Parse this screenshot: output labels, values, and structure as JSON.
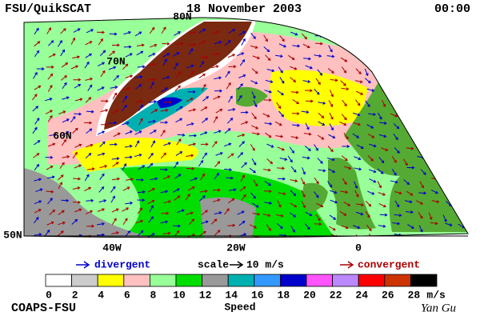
{
  "header": {
    "title": "FSU/QuikSCAT",
    "date": "18 November 2003",
    "time": "00:00"
  },
  "map": {
    "lat_labels": [
      "80N",
      "70N",
      "60N",
      "50N"
    ],
    "lon_labels": [
      "40W",
      "20W",
      "0"
    ]
  },
  "legend": {
    "divergent": "divergent",
    "scale": "scale",
    "scale_value": "10 m/s",
    "convergent": "convergent"
  },
  "colorbar": {
    "ticks": [
      0,
      2,
      4,
      6,
      8,
      10,
      12,
      14,
      16,
      18,
      20,
      22,
      24,
      26,
      28
    ],
    "colors": [
      "#ffffff",
      "#cccccc",
      "#ffff00",
      "#ffc0c0",
      "#99ff99",
      "#00dd00",
      "#999999",
      "#00b0b0",
      "#3399ff",
      "#0000cc",
      "#ff55ff",
      "#bb88ff",
      "#ff0000",
      "#cc3300",
      "#000000"
    ],
    "unit": "m/s",
    "label": "Speed"
  },
  "footer": {
    "credit": "COAPS-FSU",
    "author": "Yan Gu"
  }
}
